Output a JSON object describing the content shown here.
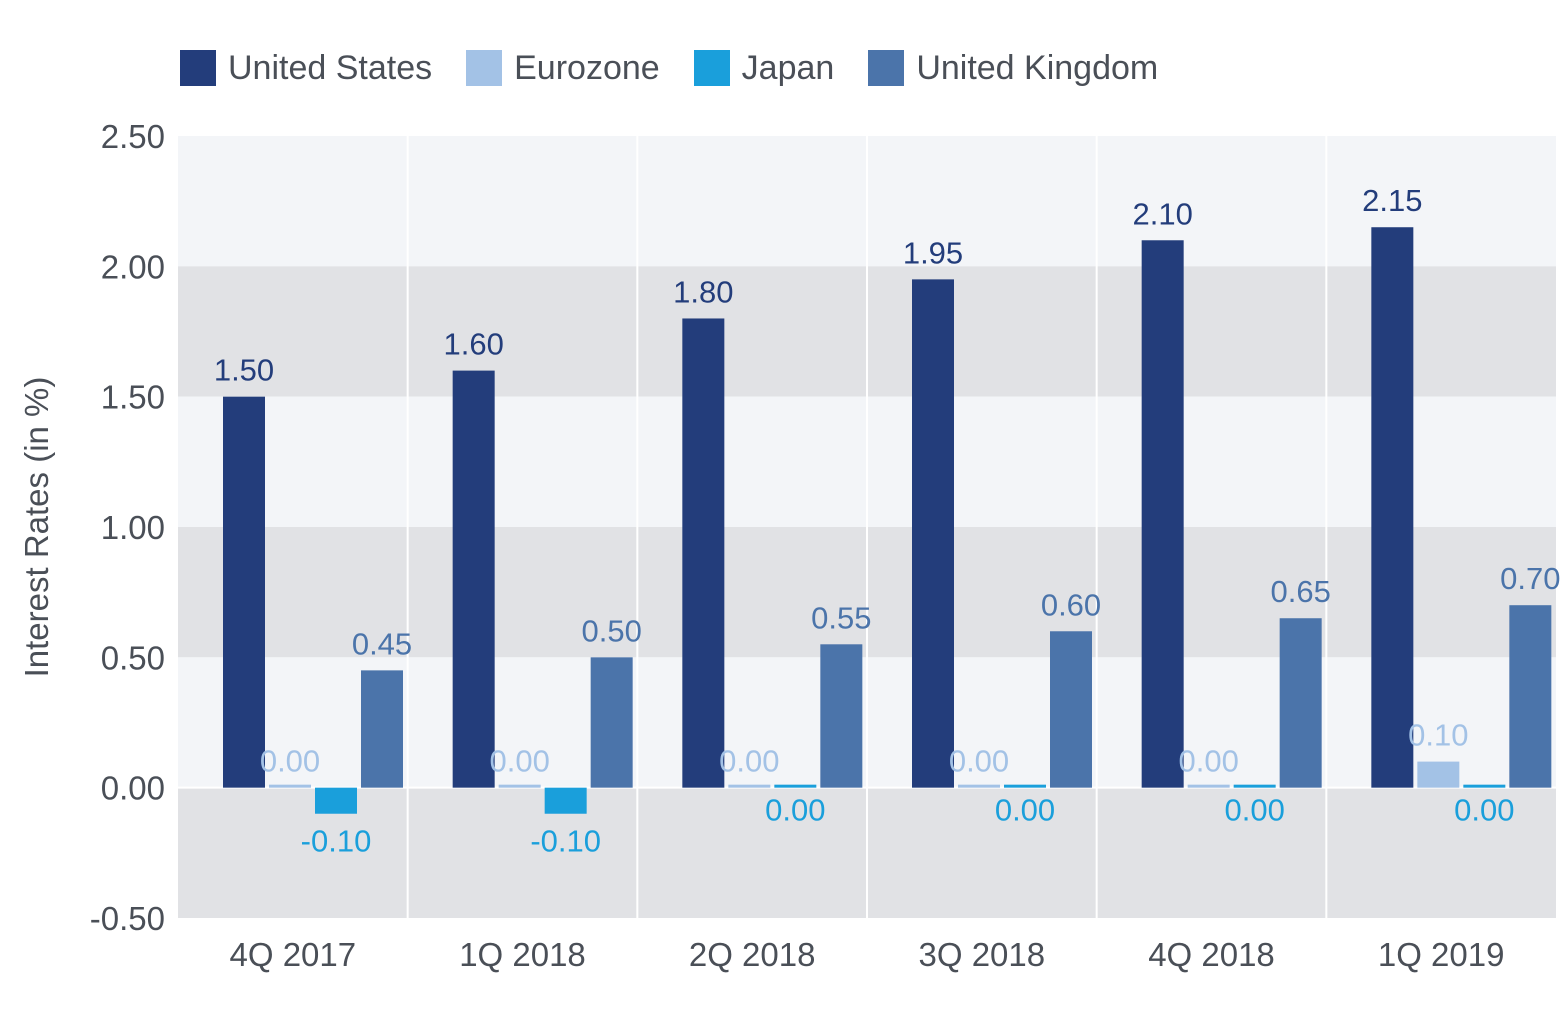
{
  "chart_data": {
    "type": "bar",
    "title": "",
    "xlabel": "",
    "ylabel": "Interest Rates (in %)",
    "ylim": [
      -0.5,
      2.5
    ],
    "yticks": [
      "2.50",
      "2.00",
      "1.50",
      "1.00",
      "0.50",
      "0.00",
      "-0.50"
    ],
    "ytick_values": [
      2.5,
      2.0,
      1.5,
      1.0,
      0.5,
      0.0,
      -0.5
    ],
    "categories": [
      "4Q 2017",
      "1Q 2018",
      "2Q 2018",
      "3Q 2018",
      "4Q 2018",
      "1Q 2019"
    ],
    "legend_position": "top-left",
    "series": [
      {
        "name": "United States",
        "color": "#233d7b",
        "label_color": "#233d7b",
        "values": [
          1.5,
          1.6,
          1.8,
          1.95,
          2.1,
          2.15
        ],
        "labels": [
          "1.50",
          "1.60",
          "1.80",
          "1.95",
          "2.10",
          "2.15"
        ]
      },
      {
        "name": "Eurozone",
        "color": "#a3c2e6",
        "label_color": "#a3c2e6",
        "values": [
          0.0,
          0.0,
          0.0,
          0.0,
          0.0,
          0.1
        ],
        "labels": [
          "0.00",
          "0.00",
          "0.00",
          "0.00",
          "0.00",
          "0.10"
        ]
      },
      {
        "name": "Japan",
        "color": "#1a9fdb",
        "label_color": "#1a9fdb",
        "values": [
          -0.1,
          -0.1,
          0.0,
          0.0,
          0.0,
          0.0
        ],
        "labels": [
          "-0.10",
          "-0.10",
          "0.00",
          "0.00",
          "0.00",
          "0.00"
        ]
      },
      {
        "name": "United Kingdom",
        "color": "#4b74aa",
        "label_color": "#4b74aa",
        "values": [
          0.45,
          0.5,
          0.55,
          0.6,
          0.65,
          0.7
        ],
        "labels": [
          "0.45",
          "0.50",
          "0.55",
          "0.60",
          "0.65",
          "0.70"
        ]
      }
    ]
  }
}
